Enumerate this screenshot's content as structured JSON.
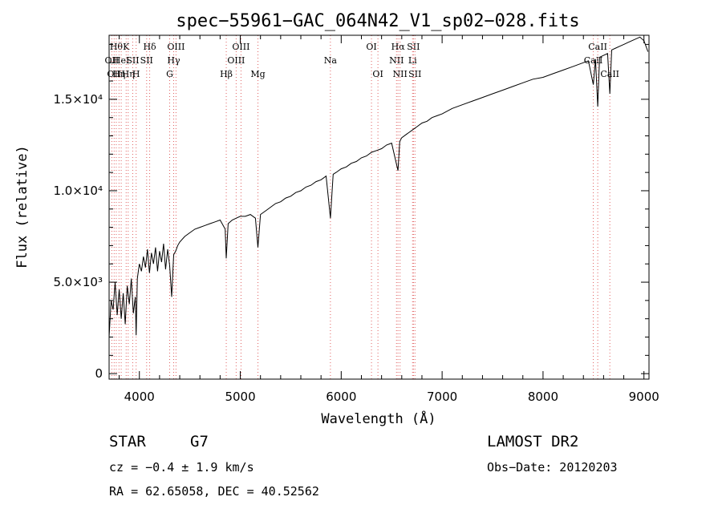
{
  "chart_data": {
    "type": "line",
    "title": "spec−55961−GAC_064N42_V1_sp02−028.fits",
    "xlabel": "Wavelength (Å)",
    "ylabel": "Flux (relative)",
    "xlim": [
      3700,
      9050
    ],
    "ylim": [
      -300,
      18500
    ],
    "x_ticks": [
      4000,
      5000,
      6000,
      7000,
      8000,
      9000
    ],
    "y_ticks": [
      {
        "value": 0,
        "label": "0"
      },
      {
        "value": 5000,
        "label": "5.0×10³"
      },
      {
        "value": 10000,
        "label": "1.0×10⁴"
      },
      {
        "value": 15000,
        "label": "1.5×10⁴"
      }
    ],
    "series": [
      {
        "x": [
          3700,
          3720,
          3740,
          3760,
          3780,
          3800,
          3820,
          3840,
          3860,
          3880,
          3900,
          3920,
          3940,
          3960,
          3968,
          3980,
          4000,
          4020,
          4040,
          4060,
          4080,
          4100,
          4120,
          4140,
          4160,
          4180,
          4200,
          4220,
          4240,
          4260,
          4280,
          4300,
          4320,
          4340,
          4360,
          4380,
          4400,
          4450,
          4500,
          4550,
          4600,
          4650,
          4700,
          4750,
          4800,
          4850,
          4861,
          4880,
          4920,
          4960,
          5000,
          5050,
          5100,
          5150,
          5175,
          5200,
          5250,
          5300,
          5350,
          5400,
          5450,
          5500,
          5550,
          5600,
          5650,
          5700,
          5750,
          5800,
          5850,
          5893,
          5920,
          5950,
          6000,
          6050,
          6100,
          6150,
          6200,
          6250,
          6300,
          6350,
          6400,
          6450,
          6500,
          6563,
          6580,
          6600,
          6650,
          6700,
          6750,
          6800,
          6850,
          6900,
          6950,
          7000,
          7100,
          7200,
          7300,
          7400,
          7500,
          7600,
          7700,
          7800,
          7900,
          8000,
          8100,
          8200,
          8300,
          8400,
          8450,
          8498,
          8520,
          8542,
          8560,
          8600,
          8640,
          8662,
          8680,
          8720,
          8760,
          8800,
          8840,
          8880,
          8920,
          8960,
          9000,
          9040
        ],
        "y": [
          2000,
          4000,
          3500,
          5000,
          3200,
          4600,
          3000,
          4400,
          2700,
          4800,
          3800,
          5200,
          3300,
          4200,
          2100,
          5200,
          6000,
          5600,
          6400,
          5800,
          6800,
          5500,
          6600,
          6000,
          6900,
          5600,
          6700,
          6100,
          7100,
          5700,
          6800,
          5900,
          4200,
          6500,
          6700,
          7000,
          7200,
          7500,
          7700,
          7900,
          8000,
          8100,
          8200,
          8300,
          8400,
          7900,
          6300,
          8200,
          8400,
          8500,
          8600,
          8600,
          8700,
          8500,
          6900,
          8700,
          8900,
          9100,
          9300,
          9400,
          9600,
          9700,
          9900,
          10000,
          10200,
          10300,
          10500,
          10600,
          10800,
          8500,
          10900,
          11000,
          11200,
          11300,
          11500,
          11600,
          11800,
          11900,
          12100,
          12200,
          12300,
          12500,
          12600,
          11100,
          12700,
          12900,
          13100,
          13300,
          13500,
          13700,
          13800,
          14000,
          14100,
          14200,
          14500,
          14700,
          14900,
          15100,
          15300,
          15500,
          15700,
          15900,
          16100,
          16200,
          16400,
          16600,
          16800,
          17000,
          17100,
          15800,
          17200,
          14600,
          17300,
          17400,
          17500,
          15300,
          17700,
          17800,
          17900,
          18000,
          18100,
          18200,
          18300,
          18400,
          18200,
          17600
        ]
      }
    ],
    "line_markers": [
      {
        "wl": 3727,
        "label": "OII",
        "row": 1
      },
      {
        "wl": 3750,
        "label": "OII",
        "row": 2
      },
      {
        "wl": 3771,
        "label": "Hθ",
        "row": 0
      },
      {
        "wl": 3798,
        "label": "Hη",
        "row": 2
      },
      {
        "wl": 3820,
        "label": "HeI",
        "row": 1
      },
      {
        "wl": 3869,
        "label": "K",
        "row": 0
      },
      {
        "wl": 3889,
        "label": "Hη",
        "row": 2
      },
      {
        "wl": 3934,
        "label": "SII",
        "row": 1
      },
      {
        "wl": 3968,
        "label": "H",
        "row": 2
      },
      {
        "wl": 4072,
        "label": "SII",
        "row": 1
      },
      {
        "wl": 4102,
        "label": "Hδ",
        "row": 0
      },
      {
        "wl": 4300,
        "label": "G",
        "row": 2
      },
      {
        "wl": 4340,
        "label": "Hγ",
        "row": 1
      },
      {
        "wl": 4363,
        "label": "OIII",
        "row": 0
      },
      {
        "wl": 4861,
        "label": "Hβ",
        "row": 2
      },
      {
        "wl": 4959,
        "label": "OIII",
        "row": 1
      },
      {
        "wl": 5007,
        "label": "OIII",
        "row": 0
      },
      {
        "wl": 5175,
        "label": "Mg",
        "row": 2
      },
      {
        "wl": 5893,
        "label": "Na",
        "row": 1
      },
      {
        "wl": 6300,
        "label": "OI",
        "row": 0
      },
      {
        "wl": 6364,
        "label": "OI",
        "row": 2
      },
      {
        "wl": 6548,
        "label": "NII",
        "row": 1
      },
      {
        "wl": 6563,
        "label": "Hα",
        "row": 0
      },
      {
        "wl": 6583,
        "label": "NII",
        "row": 2
      },
      {
        "wl": 6707,
        "label": "Li",
        "row": 1
      },
      {
        "wl": 6716,
        "label": "SII",
        "row": 0
      },
      {
        "wl": 6731,
        "label": "SII",
        "row": 2
      },
      {
        "wl": 8498,
        "label": "CaII",
        "row": 1
      },
      {
        "wl": 8542,
        "label": "CaII",
        "row": 0
      },
      {
        "wl": 8662,
        "label": "CaII",
        "row": 2
      }
    ]
  },
  "info": {
    "object_class": "STAR",
    "subclass": "G7",
    "survey": "LAMOST DR2",
    "cz": "cz = −0.4 ± 1.9 km/s",
    "obs_date": "Obs−Date: 20120203",
    "coords": "RA =  62.65058, DEC =  40.52562"
  }
}
